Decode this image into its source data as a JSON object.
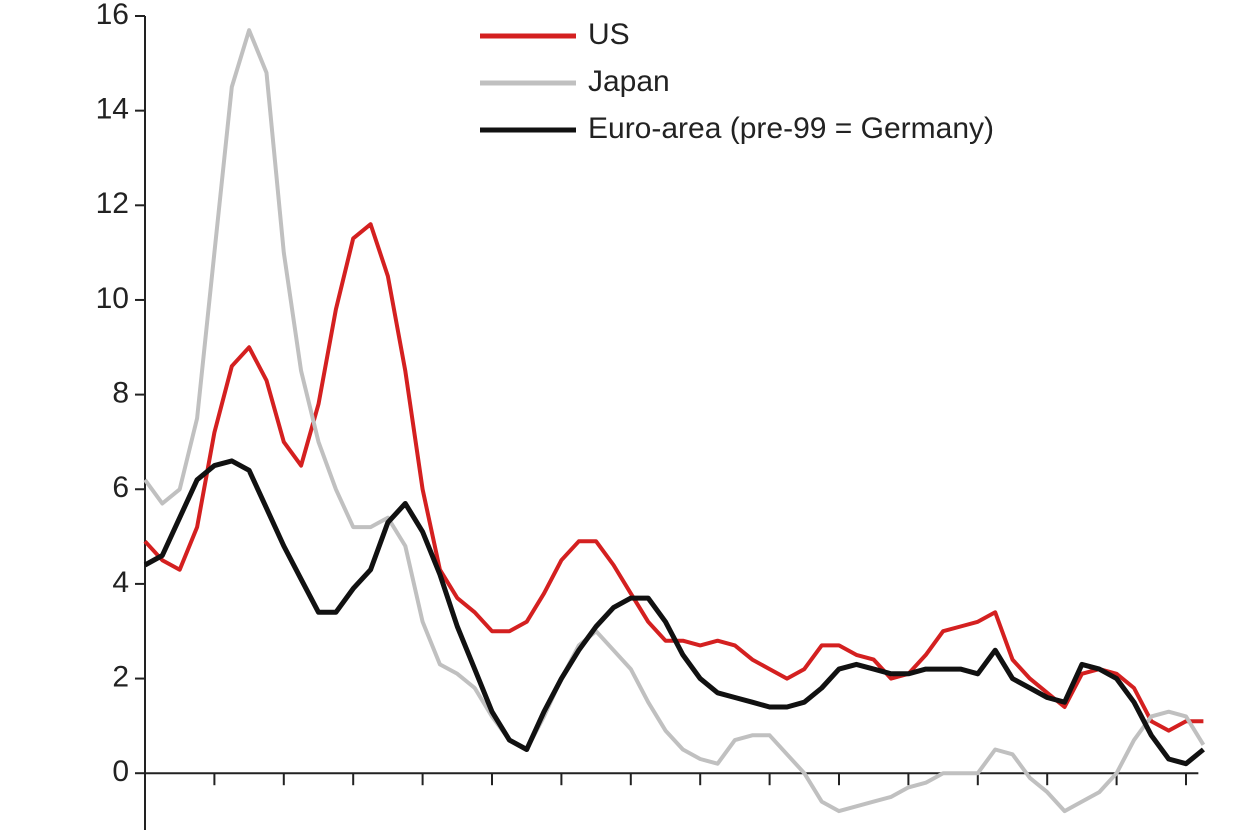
{
  "chart_data": {
    "type": "line",
    "x": [
      0,
      0.25,
      0.5,
      0.75,
      1,
      1.25,
      1.5,
      1.75,
      2,
      2.25,
      2.5,
      2.75,
      3,
      3.25,
      3.5,
      3.75,
      4,
      4.25,
      4.5,
      4.75,
      5,
      5.25,
      5.5,
      5.75,
      6,
      6.25,
      6.5,
      6.75,
      7,
      7.25,
      7.5,
      7.75,
      8,
      8.25,
      8.5,
      8.75,
      9,
      9.25,
      9.5,
      9.75,
      10,
      10.25,
      10.5,
      10.75,
      11,
      11.25,
      11.5,
      11.75,
      12,
      12.25,
      12.5,
      12.75,
      13,
      13.25,
      13.5,
      13.75,
      14,
      14.25,
      14.5,
      14.75,
      15,
      15.25
    ],
    "series": [
      {
        "name": "US",
        "color": "#d42020",
        "values": [
          4.9,
          4.5,
          4.3,
          5.2,
          7.2,
          8.6,
          9.0,
          8.3,
          7.0,
          6.5,
          7.8,
          9.8,
          11.3,
          11.6,
          10.5,
          8.5,
          6.0,
          4.3,
          3.7,
          3.4,
          3.0,
          3.0,
          3.2,
          3.8,
          4.5,
          4.9,
          4.9,
          4.4,
          3.8,
          3.2,
          2.8,
          2.8,
          2.7,
          2.8,
          2.7,
          2.4,
          2.2,
          2.0,
          2.2,
          2.7,
          2.7,
          2.5,
          2.4,
          2.0,
          2.1,
          2.5,
          3.0,
          3.1,
          3.2,
          3.4,
          2.4,
          2.0,
          1.7,
          1.4,
          2.1,
          2.2,
          2.1,
          1.8,
          1.1,
          0.9,
          1.1,
          1.1
        ]
      },
      {
        "name": "Japan",
        "color": "#c0c0c0",
        "values": [
          6.2,
          5.7,
          6.0,
          7.5,
          11.0,
          14.5,
          15.7,
          14.8,
          11.0,
          8.5,
          7.0,
          6.0,
          5.2,
          5.2,
          5.4,
          4.8,
          3.2,
          2.3,
          2.1,
          1.8,
          1.2,
          0.7,
          0.5,
          1.2,
          2.0,
          2.7,
          3.0,
          2.6,
          2.2,
          1.5,
          0.9,
          0.5,
          0.3,
          0.2,
          0.7,
          0.8,
          0.8,
          0.4,
          0,
          -0.6,
          -0.8,
          -0.7,
          -0.6,
          -0.5,
          -0.3,
          -0.2,
          0,
          0,
          0,
          0.5,
          0.4,
          -0.1,
          -0.4,
          -0.8,
          -0.6,
          -0.4,
          0,
          0.7,
          1.2,
          1.3,
          1.2,
          0.6
        ]
      },
      {
        "name": "Euro-area (pre-99 = Germany)",
        "color": "#111111",
        "values": [
          4.4,
          4.6,
          5.4,
          6.2,
          6.5,
          6.6,
          6.4,
          5.6,
          4.8,
          4.1,
          3.4,
          3.4,
          3.9,
          4.3,
          5.3,
          5.7,
          5.1,
          4.2,
          3.1,
          2.2,
          1.3,
          0.7,
          0.5,
          1.3,
          2.0,
          2.6,
          3.1,
          3.5,
          3.7,
          3.7,
          3.2,
          2.5,
          2.0,
          1.7,
          1.6,
          1.5,
          1.4,
          1.4,
          1.5,
          1.8,
          2.2,
          2.3,
          2.2,
          2.1,
          2.1,
          2.2,
          2.2,
          2.2,
          2.1,
          2.6,
          2.0,
          1.8,
          1.6,
          1.5,
          2.3,
          2.2,
          2.0,
          1.5,
          0.8,
          0.3,
          0.2,
          0.5
        ]
      }
    ],
    "xlim": [
      0,
      15.25
    ],
    "xticks": [
      0,
      1,
      2,
      3,
      4,
      5,
      6,
      7,
      8,
      9,
      10,
      11,
      12,
      13,
      14,
      15
    ],
    "ylim": [
      -1.2,
      16
    ],
    "yticks": [
      0,
      2,
      4,
      6,
      8,
      10,
      12,
      14,
      16
    ],
    "legend": "top"
  }
}
